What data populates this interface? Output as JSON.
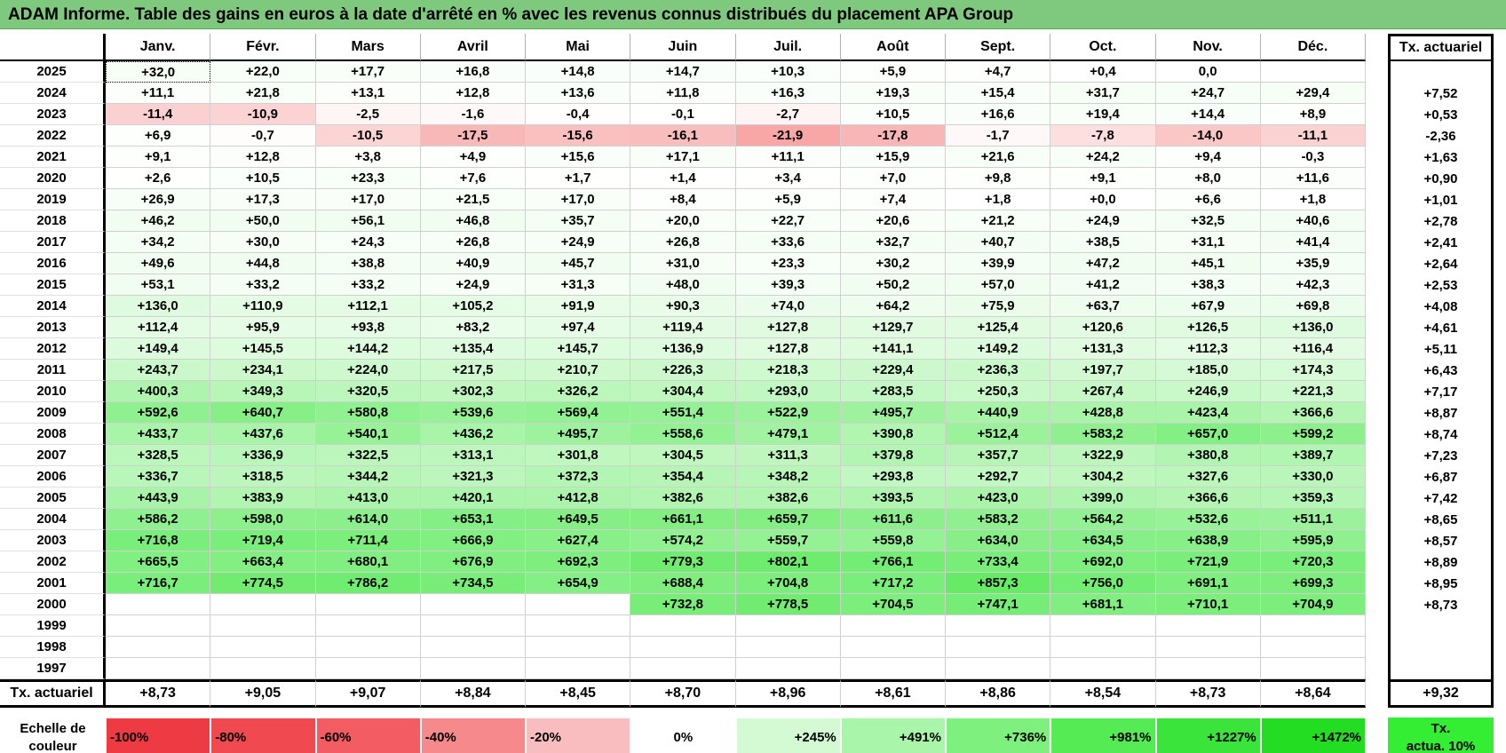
{
  "title": "ADAM Informe. Table des gains en euros à la date d'arrêté en % avec les revenus connus distribués du placement APA Group",
  "months": [
    "Janv.",
    "Févr.",
    "Mars",
    "Avril",
    "Mai",
    "Juin",
    "Juil.",
    "Août",
    "Sept.",
    "Oct.",
    "Nov.",
    "Déc."
  ],
  "tx_header": "Tx. actuariel",
  "rows": [
    {
      "year": "2025",
      "values": [
        "+32,0",
        "+22,0",
        "+17,7",
        "+16,8",
        "+14,8",
        "+14,7",
        "+10,3",
        "+5,9",
        "+4,7",
        "+0,4",
        "0,0",
        ""
      ],
      "tx": ""
    },
    {
      "year": "2024",
      "values": [
        "+11,1",
        "+21,8",
        "+13,1",
        "+12,8",
        "+13,6",
        "+11,8",
        "+16,3",
        "+19,3",
        "+15,4",
        "+31,7",
        "+24,7",
        "+29,4"
      ],
      "tx": "+7,52"
    },
    {
      "year": "2023",
      "values": [
        "-11,4",
        "-10,9",
        "-2,5",
        "-1,6",
        "-0,4",
        "-0,1",
        "-2,7",
        "+10,5",
        "+16,6",
        "+19,4",
        "+14,4",
        "+8,9"
      ],
      "tx": "+0,53"
    },
    {
      "year": "2022",
      "values": [
        "+6,9",
        "-0,7",
        "-10,5",
        "-17,5",
        "-15,6",
        "-16,1",
        "-21,9",
        "-17,8",
        "-1,7",
        "-7,8",
        "-14,0",
        "-11,1"
      ],
      "tx": "-2,36"
    },
    {
      "year": "2021",
      "values": [
        "+9,1",
        "+12,8",
        "+3,8",
        "+4,9",
        "+15,6",
        "+17,1",
        "+11,1",
        "+15,9",
        "+21,6",
        "+24,2",
        "+9,4",
        "-0,3"
      ],
      "tx": "+1,63"
    },
    {
      "year": "2020",
      "values": [
        "+2,6",
        "+10,5",
        "+23,3",
        "+7,6",
        "+1,7",
        "+1,4",
        "+3,4",
        "+7,0",
        "+9,8",
        "+9,1",
        "+8,0",
        "+11,6"
      ],
      "tx": "+0,90"
    },
    {
      "year": "2019",
      "values": [
        "+26,9",
        "+17,3",
        "+17,0",
        "+21,5",
        "+17,0",
        "+8,4",
        "+5,9",
        "+7,4",
        "+1,8",
        "+0,0",
        "+6,6",
        "+1,8"
      ],
      "tx": "+1,01"
    },
    {
      "year": "2018",
      "values": [
        "+46,2",
        "+50,0",
        "+56,1",
        "+46,8",
        "+35,7",
        "+20,0",
        "+22,7",
        "+20,6",
        "+21,2",
        "+24,9",
        "+32,5",
        "+40,6"
      ],
      "tx": "+2,78"
    },
    {
      "year": "2017",
      "values": [
        "+34,2",
        "+30,0",
        "+24,3",
        "+26,8",
        "+24,9",
        "+26,8",
        "+33,6",
        "+32,7",
        "+40,7",
        "+38,5",
        "+31,1",
        "+41,4"
      ],
      "tx": "+2,41"
    },
    {
      "year": "2016",
      "values": [
        "+49,6",
        "+44,8",
        "+38,8",
        "+40,9",
        "+45,7",
        "+31,0",
        "+23,3",
        "+30,2",
        "+39,9",
        "+47,2",
        "+45,1",
        "+35,9"
      ],
      "tx": "+2,64"
    },
    {
      "year": "2015",
      "values": [
        "+53,1",
        "+33,2",
        "+33,2",
        "+24,9",
        "+31,3",
        "+48,0",
        "+39,3",
        "+50,2",
        "+57,0",
        "+41,2",
        "+38,3",
        "+42,3"
      ],
      "tx": "+2,53"
    },
    {
      "year": "2014",
      "values": [
        "+136,0",
        "+110,9",
        "+112,1",
        "+105,2",
        "+91,9",
        "+90,3",
        "+74,0",
        "+64,2",
        "+75,9",
        "+63,7",
        "+67,9",
        "+69,8"
      ],
      "tx": "+4,08"
    },
    {
      "year": "2013",
      "values": [
        "+112,4",
        "+95,9",
        "+93,8",
        "+83,2",
        "+97,4",
        "+119,4",
        "+127,8",
        "+129,7",
        "+125,4",
        "+120,6",
        "+126,5",
        "+136,0"
      ],
      "tx": "+4,61"
    },
    {
      "year": "2012",
      "values": [
        "+149,4",
        "+145,5",
        "+144,2",
        "+135,4",
        "+145,7",
        "+136,9",
        "+127,8",
        "+141,1",
        "+149,2",
        "+131,3",
        "+112,3",
        "+116,4"
      ],
      "tx": "+5,11"
    },
    {
      "year": "2011",
      "values": [
        "+243,7",
        "+234,1",
        "+224,0",
        "+217,5",
        "+210,7",
        "+226,3",
        "+218,3",
        "+229,4",
        "+236,3",
        "+197,7",
        "+185,0",
        "+174,3"
      ],
      "tx": "+6,43"
    },
    {
      "year": "2010",
      "values": [
        "+400,3",
        "+349,3",
        "+320,5",
        "+302,3",
        "+326,2",
        "+304,4",
        "+293,0",
        "+283,5",
        "+250,3",
        "+267,4",
        "+246,9",
        "+221,3"
      ],
      "tx": "+7,17"
    },
    {
      "year": "2009",
      "values": [
        "+592,6",
        "+640,7",
        "+580,8",
        "+539,6",
        "+569,4",
        "+551,4",
        "+522,9",
        "+495,7",
        "+440,9",
        "+428,8",
        "+423,4",
        "+366,6"
      ],
      "tx": "+8,87"
    },
    {
      "year": "2008",
      "values": [
        "+433,7",
        "+437,6",
        "+540,1",
        "+436,2",
        "+495,7",
        "+558,6",
        "+479,1",
        "+390,8",
        "+512,4",
        "+583,2",
        "+657,0",
        "+599,2"
      ],
      "tx": "+8,74"
    },
    {
      "year": "2007",
      "values": [
        "+328,5",
        "+336,9",
        "+322,5",
        "+313,1",
        "+301,8",
        "+304,5",
        "+311,3",
        "+379,8",
        "+357,7",
        "+322,9",
        "+380,8",
        "+389,7"
      ],
      "tx": "+7,23"
    },
    {
      "year": "2006",
      "values": [
        "+336,7",
        "+318,5",
        "+344,2",
        "+321,3",
        "+372,3",
        "+354,4",
        "+348,2",
        "+293,8",
        "+292,7",
        "+304,2",
        "+327,6",
        "+330,0"
      ],
      "tx": "+6,87"
    },
    {
      "year": "2005",
      "values": [
        "+443,9",
        "+383,9",
        "+413,0",
        "+420,1",
        "+412,8",
        "+382,6",
        "+382,6",
        "+393,5",
        "+423,0",
        "+399,0",
        "+366,6",
        "+359,3"
      ],
      "tx": "+7,42"
    },
    {
      "year": "2004",
      "values": [
        "+586,2",
        "+598,0",
        "+614,0",
        "+653,1",
        "+649,5",
        "+661,1",
        "+659,7",
        "+611,6",
        "+583,2",
        "+564,2",
        "+532,6",
        "+511,1"
      ],
      "tx": "+8,65"
    },
    {
      "year": "2003",
      "values": [
        "+716,8",
        "+719,4",
        "+711,4",
        "+666,9",
        "+627,4",
        "+574,2",
        "+559,7",
        "+559,8",
        "+634,0",
        "+634,5",
        "+638,9",
        "+595,9"
      ],
      "tx": "+8,57"
    },
    {
      "year": "2002",
      "values": [
        "+665,5",
        "+663,4",
        "+680,1",
        "+676,9",
        "+692,3",
        "+779,3",
        "+802,1",
        "+766,1",
        "+733,4",
        "+692,0",
        "+721,9",
        "+720,3"
      ],
      "tx": "+8,89"
    },
    {
      "year": "2001",
      "values": [
        "+716,7",
        "+774,5",
        "+786,2",
        "+734,5",
        "+654,9",
        "+688,4",
        "+704,8",
        "+717,2",
        "+857,3",
        "+756,0",
        "+691,1",
        "+699,3"
      ],
      "tx": "+8,95"
    },
    {
      "year": "2000",
      "values": [
        "",
        "",
        "",
        "",
        "",
        "+732,8",
        "+778,5",
        "+704,5",
        "+747,1",
        "+681,1",
        "+710,1",
        "+704,9"
      ],
      "tx": "+8,73"
    },
    {
      "year": "1999",
      "values": [
        "",
        "",
        "",
        "",
        "",
        "",
        "",
        "",
        "",
        "",
        "",
        ""
      ],
      "tx": ""
    },
    {
      "year": "1998",
      "values": [
        "",
        "",
        "",
        "",
        "",
        "",
        "",
        "",
        "",
        "",
        "",
        ""
      ],
      "tx": ""
    },
    {
      "year": "1997",
      "values": [
        "",
        "",
        "",
        "",
        "",
        "",
        "",
        "",
        "",
        "",
        "",
        ""
      ],
      "tx": ""
    }
  ],
  "footer": {
    "label": "Tx. actuariel",
    "values": [
      "+8,73",
      "+9,05",
      "+9,07",
      "+8,84",
      "+8,45",
      "+8,70",
      "+8,96",
      "+8,61",
      "+8,86",
      "+8,54",
      "+8,73",
      "+8,64"
    ],
    "tx": "+9,32"
  },
  "scale": {
    "label_line1": "Echelle de",
    "label_line2": "couleur",
    "steps": [
      {
        "text": "-100%",
        "color": "#ee3b43",
        "kind": "neg"
      },
      {
        "text": "-80%",
        "color": "#f04a50",
        "kind": "neg"
      },
      {
        "text": "-60%",
        "color": "#f25c62",
        "kind": "neg"
      },
      {
        "text": "-40%",
        "color": "#f5898c",
        "kind": "neg"
      },
      {
        "text": "-20%",
        "color": "#f9bdbf",
        "kind": "neg"
      },
      {
        "text": "0%",
        "color": "#ffffff",
        "kind": "zero"
      },
      {
        "text": "+245%",
        "color": "#d3fad3",
        "kind": "pos"
      },
      {
        "text": "+491%",
        "color": "#a9f5a9",
        "kind": "pos"
      },
      {
        "text": "+736%",
        "color": "#7ef07e",
        "kind": "pos"
      },
      {
        "text": "+981%",
        "color": "#55eb55",
        "kind": "pos"
      },
      {
        "text": "+1227%",
        "color": "#3ae43a",
        "kind": "pos"
      },
      {
        "text": "+1472%",
        "color": "#22dd22",
        "kind": "pos"
      }
    ],
    "tx_line1": "Tx.",
    "tx_line2": "actua. 10%"
  }
}
